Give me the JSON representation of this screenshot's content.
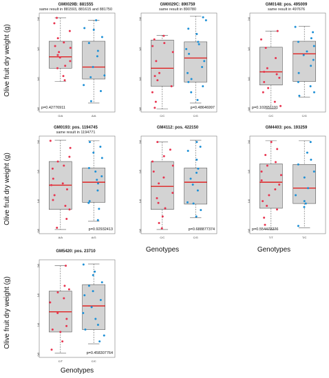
{
  "colors": {
    "box_fill": "#d3d3d3",
    "box_stroke": "#555555",
    "median": "#e02020",
    "pts_a": "#e8344f",
    "pts_b": "#1e90d6"
  },
  "ylabels": [
    "Olive fruit dry weight (g)",
    "Olive fruit dry weight (g)",
    "Olive fruit dry weight (g)"
  ],
  "xlabels": [
    "Genotypes",
    "Genotypes",
    "Genotypes"
  ],
  "chart_data": [
    {
      "type": "box",
      "title": "GM0029B: 881555",
      "subtitle": "same result in 881593, 881615 and 881750",
      "ylim": [
        0.45,
        2.1
      ],
      "yticks": [
        "0.5",
        "1.0",
        "1.5",
        "2.0"
      ],
      "ytick_values": [
        0.5,
        1.0,
        1.5,
        2.0
      ],
      "pvalue": "p=0.42776911",
      "categories": [
        "G/A",
        "A/A"
      ],
      "boxes": [
        {
          "q1": 1.18,
          "median": 1.37,
          "q3": 1.63,
          "whisker_low": 0.96,
          "whisker_high": 2.02,
          "points": [
            2.02,
            1.93,
            1.8,
            1.68,
            1.61,
            1.55,
            1.52,
            1.45,
            1.4,
            1.36,
            1.3,
            1.22,
            1.18,
            1.05,
            0.98
          ]
        },
        {
          "q1": 1.0,
          "median": 1.2,
          "q3": 1.63,
          "whisker_low": 0.6,
          "whisker_high": 1.98,
          "points": [
            1.98,
            1.85,
            1.82,
            1.7,
            1.6,
            1.47,
            1.38,
            1.2,
            1.06,
            1.03,
            0.9,
            0.8,
            0.63
          ]
        }
      ]
    },
    {
      "type": "box",
      "title": "GM0029C: 890759",
      "subtitle": "same result in 890780",
      "ylim": [
        0.45,
        2.1
      ],
      "yticks": [
        "0.5",
        "1.0",
        "1.5",
        "2.0"
      ],
      "ytick_values": [
        0.5,
        1.0,
        1.5,
        2.0
      ],
      "pvalue": "p=0.48646997",
      "categories": [
        "C/C",
        "C/G"
      ],
      "boxes": [
        {
          "q1": 0.88,
          "median": 1.18,
          "q3": 1.65,
          "whisker_low": 0.5,
          "whisker_high": 1.73,
          "points": [
            1.72,
            1.66,
            1.6,
            1.55,
            1.45,
            1.3,
            1.1,
            1.05,
            0.98,
            0.88,
            0.78,
            0.62,
            0.52
          ]
        },
        {
          "q1": 0.95,
          "median": 1.35,
          "q3": 1.62,
          "whisker_low": 0.6,
          "whisker_high": 2.05,
          "points": [
            2.03,
            1.98,
            1.84,
            1.75,
            1.62,
            1.58,
            1.5,
            1.42,
            1.3,
            1.2,
            1.1,
            1.0,
            0.95,
            0.88,
            0.78,
            0.65
          ]
        }
      ]
    },
    {
      "type": "box",
      "title": "GM0148: pos. 495009",
      "subtitle": "same result in 497676",
      "ylim": [
        0.45,
        2.1
      ],
      "yticks": [
        "0.5",
        "1.0",
        "1.5",
        "2.0"
      ],
      "ytick_values": [
        0.5,
        1.0,
        1.5,
        2.0
      ],
      "pvalue": "p=0.102651191",
      "categories": [
        "C/C",
        "C/G"
      ],
      "boxes": [
        {
          "q1": 0.9,
          "median": 1.12,
          "q3": 1.53,
          "whisker_low": 0.5,
          "whisker_high": 1.8,
          "points": [
            1.8,
            1.66,
            1.52,
            1.35,
            1.18,
            1.12,
            1.08,
            1.02,
            0.95,
            0.85,
            0.78,
            0.62,
            0.55
          ]
        },
        {
          "q1": 0.96,
          "median": 1.42,
          "q3": 1.63,
          "whisker_low": 0.7,
          "whisker_high": 1.88,
          "points": [
            1.87,
            1.78,
            1.68,
            1.62,
            1.55,
            1.46,
            1.4,
            1.32,
            1.22,
            1.1,
            0.95,
            0.88,
            0.78,
            0.72
          ]
        }
      ]
    },
    {
      "type": "box",
      "title": "GM0193: pos. 1194745",
      "subtitle": "same result in 1194771",
      "ylim": [
        0.45,
        2.1
      ],
      "yticks": [
        "0.5",
        "1.0",
        "1.5",
        "2.0"
      ],
      "ytick_values": [
        0.5,
        1.0,
        1.5,
        2.0
      ],
      "pvalue": "p=0.92932413",
      "categories": [
        "A/A",
        "A/G"
      ],
      "boxes": [
        {
          "q1": 0.86,
          "median": 1.27,
          "q3": 1.67,
          "whisker_low": 0.52,
          "whisker_high": 2.03,
          "points": [
            2.02,
            1.9,
            1.75,
            1.67,
            1.6,
            1.55,
            1.38,
            1.3,
            1.27,
            1.2,
            1.1,
            1.02,
            0.92,
            0.86,
            0.7,
            0.55
          ]
        },
        {
          "q1": 0.98,
          "median": 1.32,
          "q3": 1.56,
          "whisker_low": 0.66,
          "whisker_high": 2.02,
          "points": [
            2.0,
            1.92,
            1.82,
            1.73,
            1.56,
            1.5,
            1.42,
            1.36,
            1.3,
            1.18,
            1.0,
            0.97,
            0.87,
            0.68
          ]
        }
      ]
    },
    {
      "type": "box",
      "title": "GM4112: pos. 422150",
      "subtitle": "",
      "ylim": [
        0.45,
        2.1
      ],
      "yticks": [
        "0.5",
        "1.0",
        "1.5",
        "2.0"
      ],
      "ytick_values": [
        0.5,
        1.0,
        1.5,
        2.0
      ],
      "pvalue": "p=0.688877374",
      "categories": [
        "C/C",
        "C/G"
      ],
      "boxes": [
        {
          "q1": 0.86,
          "median": 1.25,
          "q3": 1.67,
          "whisker_low": 0.52,
          "whisker_high": 2.0,
          "points": [
            2.0,
            1.87,
            1.76,
            1.67,
            1.6,
            1.5,
            1.4,
            1.3,
            1.14,
            1.05,
            0.97,
            0.88,
            0.74,
            0.63,
            0.54
          ]
        },
        {
          "q1": 0.95,
          "median": 1.32,
          "q3": 1.56,
          "whisker_low": 0.72,
          "whisker_high": 2.03,
          "points": [
            2.0,
            1.92,
            1.85,
            1.7,
            1.55,
            1.48,
            1.38,
            1.28,
            1.18,
            0.98,
            0.96,
            0.85,
            0.74
          ]
        }
      ]
    },
    {
      "type": "box",
      "title": "GM4403: pos. 193259",
      "subtitle": "",
      "ylim": [
        0.45,
        2.1
      ],
      "yticks": [
        "0.5",
        "1.0",
        "1.5",
        "2.0"
      ],
      "ytick_values": [
        0.5,
        1.0,
        1.5,
        2.0
      ],
      "pvalue": "p=0.554472276",
      "categories": [
        "T/T",
        "T/C"
      ],
      "boxes": [
        {
          "q1": 0.88,
          "median": 1.32,
          "q3": 1.63,
          "whisker_low": 0.52,
          "whisker_high": 2.02,
          "points": [
            2.0,
            1.88,
            1.78,
            1.66,
            1.6,
            1.5,
            1.44,
            1.35,
            1.28,
            1.2,
            1.1,
            1.0,
            0.92,
            0.86,
            0.72,
            0.6
          ]
        },
        {
          "q1": 0.96,
          "median": 1.22,
          "q3": 1.62,
          "whisker_low": 0.55,
          "whisker_high": 2.02,
          "points": [
            2.0,
            1.82,
            1.7,
            1.62,
            1.5,
            1.4,
            1.22,
            1.1,
            1.0,
            0.96,
            0.9,
            0.58
          ]
        }
      ]
    },
    {
      "type": "box",
      "title": "GM5420: pos. 23710",
      "subtitle": "",
      "ylim": [
        0.45,
        2.1
      ],
      "yticks": [
        "0.5",
        "1.0",
        "1.5",
        "2.0"
      ],
      "ytick_values": [
        0.5,
        1.0,
        1.5,
        2.0
      ],
      "pvalue": "p=0.458307764",
      "categories": [
        "C/T",
        "C/C"
      ],
      "boxes": [
        {
          "q1": 0.88,
          "median": 1.22,
          "q3": 1.57,
          "whisker_low": 0.52,
          "whisker_high": 2.0,
          "points": [
            2.0,
            1.66,
            1.6,
            1.55,
            1.45,
            1.38,
            1.2,
            1.1,
            0.98,
            0.92,
            0.88,
            0.72,
            0.58
          ]
        },
        {
          "q1": 0.92,
          "median": 1.32,
          "q3": 1.68,
          "whisker_low": 0.68,
          "whisker_high": 2.03,
          "points": [
            2.02,
            1.9,
            1.84,
            1.72,
            1.66,
            1.57,
            1.5,
            1.42,
            1.3,
            1.2,
            1.1,
            1.0,
            0.92,
            0.82,
            0.72
          ]
        }
      ]
    }
  ]
}
